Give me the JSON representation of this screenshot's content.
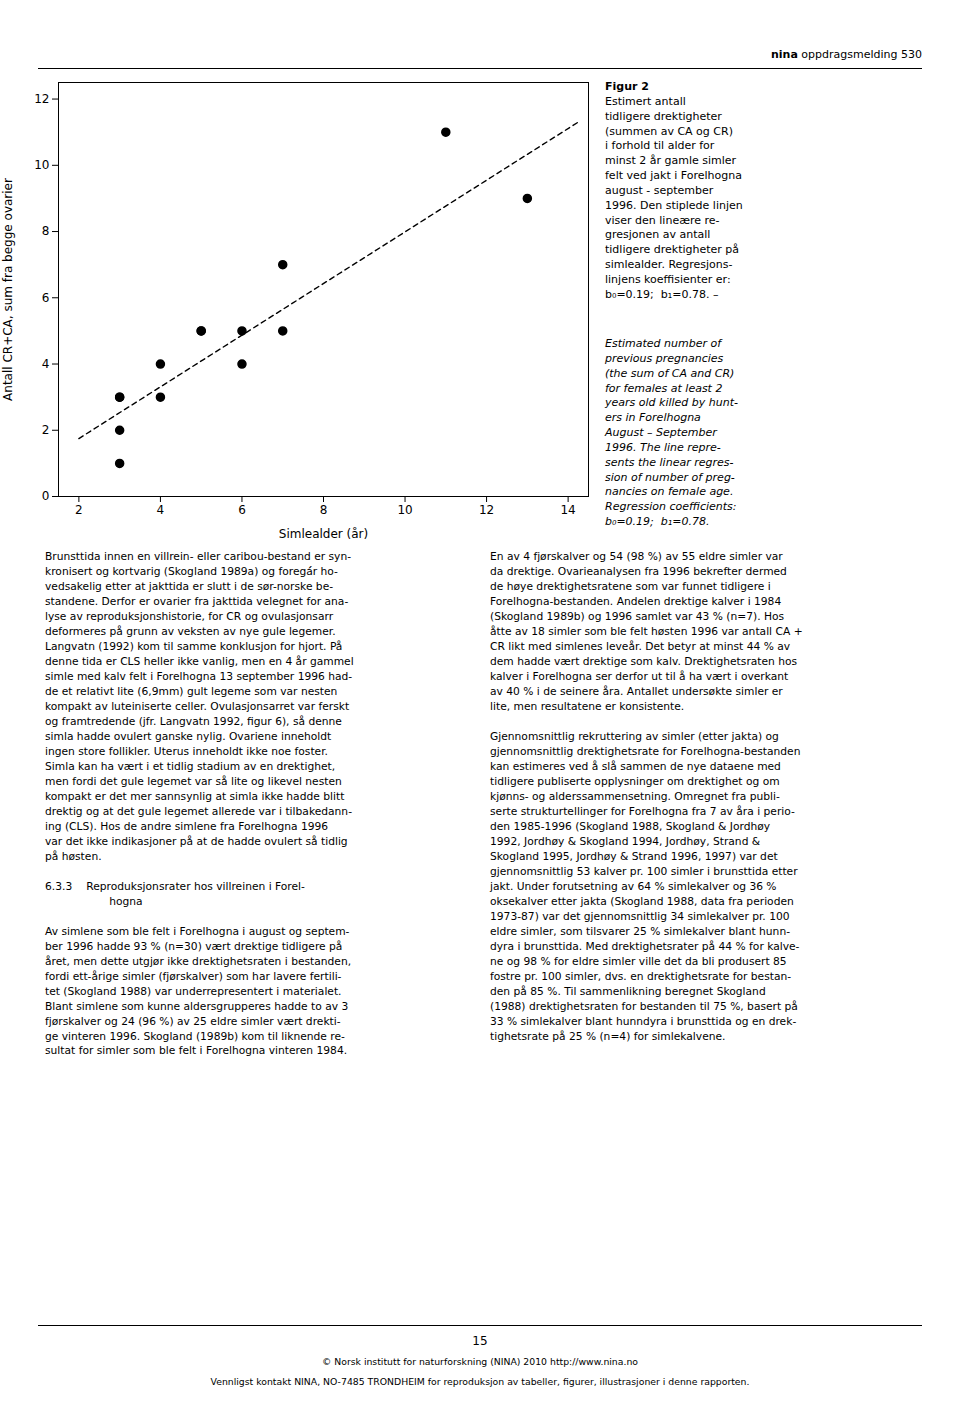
{
  "chart_data": {
    "type": "scatter",
    "xlabel": "Simlealder (år)",
    "ylabel": "Antall CR+CA, sum fra begge ovarier",
    "xlim": [
      1.5,
      14.5
    ],
    "ylim": [
      0,
      12.5
    ],
    "xticks": [
      2,
      4,
      6,
      8,
      10,
      12,
      14
    ],
    "yticks": [
      0,
      2,
      4,
      6,
      8,
      10,
      12
    ],
    "grid": false,
    "series": [
      {
        "type": "scatter",
        "color": "#000000",
        "marker": "circle",
        "x": [
          3,
          3,
          3,
          3,
          4,
          4,
          5,
          5,
          6,
          6,
          7,
          7,
          11,
          13
        ],
        "values": [
          1,
          2,
          3,
          3,
          3,
          4,
          5,
          5,
          4,
          5,
          5,
          7,
          11,
          9
        ]
      },
      {
        "type": "line",
        "color": "#000000",
        "line_style": "dashed",
        "x": [
          2.0,
          14.3
        ],
        "values": [
          1.75,
          11.344
        ]
      }
    ],
    "annotations": [
      "nina",
      "oppdragsmelding 530",
      "Figur 2",
      "Estimert antall\ntidligere drektigheter\n(summen av CA og CR)\ni forhold til alder for\nminst 2 år gamle simler\nfelt ved jakt i Forelhogna\naugust - september\n1996. Den stiplede linjen\nviser den lineære re-\ngresjonen av antall\ntidligere drektigheter på\nsimlealder. Regresjons-\nlinjens koeffisienter er:\nb₀=0.19;  b₁=0.78. –",
      "Estimated number of\nprevious pregnancies\n(the sum of CA and CR)\nfor females at least 2\nyears old killed by hunt-\ners in Forelhogna\nAugust – September\n1996. The line repre-\nsents the linear regres-\nsion of number of preg-\nnancies on female age.\nRegression coefficients:\nb₀=0.19;  b₁=0.78.",
      "Brunsttida innen en villrein- eller caribou-bestand er syn-\nkronisert og kortvarig (Skogland 1989a) og foregá́r ho-\nvedsakelig etter at jakttida er slutt i de sør-norske be-\nstandene. Derfor er ovarier fra jakttida velegnet for ana-\nlyse av reproduksjonshistorie, for CR og ovulasjonsarr\ndeformeres på grunn av veksten av nye gule legemer.\nLangvatn (1992) kom til samme konklusjon for hjort. På\ndenne tida er CLS heller ikke vanlig, men en 4 år gammel\nsimle med kalv felt i Forelhogna 13 september 1996 had-\nde et relativt lite (6,9mm) gult legeme som var nesten\nkompakt av luteiniserte celler. Ovulasjonsarret var ferskt\nog framtredende (jfr. Langvatn 1992, figur 6), så denne\nsimla hadde ovulert ganske nylig. Ovariene inneholdt\ningen store follikler. Uterus inneholdt ikke noe foster.\nSimla kan ha vært i et tidlig stadium av en drektighet,\nmen fordi det gule legemet var så lite og likevel nesten\nkompakt er det mer sannsynlig at simla ikke hadde blitt\ndrektig og at det gule legemet allerede var i tilbakedann-\ning (CLS). Hos de andre simlene fra Forelhogna 1996\nvar det ikke indikasjoner på at de hadde ovulert så tidlig\npå høsten.\n\n6.3.3  Reproduksjonsrater hos villreinen i Forel-\n      hogna\n\nAv simlene som ble felt i Forelhogna i august og septem-\nber 1996 hadde 93 % (n=30) vært drektige tidligere på\nåret, men dette utgjør ikke drektighetsraten i bestanden,\nfordi ett-årige simler (fjørskalver) som har lavere fertili-\ntet (Skogland 1988) var underrepresentert i materialet.\nBlant simlene som kunne aldersgrupperes hadde to av 3\nfjørskalver og 24 (96 %) av 25 eldre simler vært drekti-\nge vinteren 1996. Skogland (1989b) kom til liknende re-\nsultat for simler som ble felt i Forelhogna vinteren 1984.",
      "En av 4 fjørskalver og 54 (98 %) av 55 eldre simler var\nda drektige. Ovarieanalysen fra 1996 bekrefter dermed\nde høye drektighetsratene som var funnet tidligere i\nForelhogna-bestanden. Andelen drektige kalver i 1984\n(Skogland 1989b) og 1996 samlet var 43 % (n=7). Hos\nåtte av 18 simler som ble felt høsten 1996 var antall CA +\nCR likt med simlenes leveår. Det betyr at minst 44 % av\ndem hadde vært drektige som kalv. Drektighetsraten hos\nkalver i Forelhogna ser derfor ut til å ha vært i overkant\nav 40 % i de seinere åra. Antallet undersøkte simler er\nlite, men resultatene er konsistente.\n\nGjennomsnittlig rekruttering av simler (etter jakta) og\ngjennomsnittlig drektighetsrate for Forelhogna-bestanden\nkan estimeres ved å slå sammen de nye dataene med\ntidligere publiserte opplysninger om drektighet og om\nkjønns- og alderssammensetning. Omregnet fra publi-\nserte strukturtellinger for Forelhogna fra 7 av åra i perio-\nden 1985-1996 (Skogland 1988, Skogland & Jordhøy\n1992, Jordhøy & Skogland 1994, Jordhøy, Strand &\nSkogland 1995, Jordhøy & Strand 1996, 1997) var det\ngjennomsnittlig 53 kalver pr. 100 simler i brunsttida etter\njakt. Under forutsetning av 64 % simlekalver og 36 %\noksekalver etter jakta (Skogland 1988, data fra perioden\n1973-87) var det gjennomsnittlig 34 simlekalver pr. 100\neldre simler, som tilsvarer 25 % simlekalver blant hunn-\ndyra i brunsttida. Med drektighetsrater på 44 % for kalve-\nne og 98 % for eldre simler ville det da bli produsert 85\nfostre pr. 100 simler, dvs. en drektighetsrate for bestan-\nden på 85 %. Til sammenlikning beregnet Skogland\n(1988) drektighetsraten for bestanden til 75 %, basert på\n33 % simlekalver blant hunndyra i brunsttida og en drek-\ntighetsrate på 25 % (n=4) for simlekalvene.",
      "15",
      "© Norsk institutt for naturforskning (NINA) 2010 http://www.nina.no",
      "Vennligst kontakt NINA, NO-7485 TRONDHEIM for reproduksjon av tabeller, figurer, illustrasjoner i denne rapporten."
    ]
  }
}
